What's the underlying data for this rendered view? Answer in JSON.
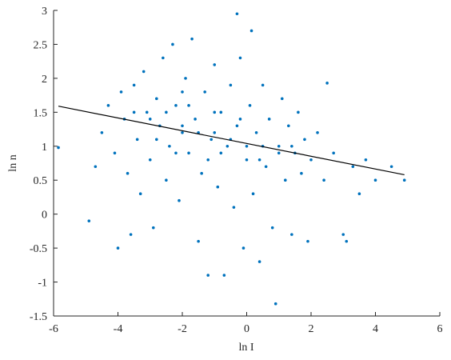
{
  "chart_data": {
    "type": "scatter",
    "xlabel": "ln I",
    "ylabel": "ln n",
    "xlim": [
      -6,
      6
    ],
    "ylim": [
      -1.5,
      3
    ],
    "xticks": [
      -6,
      -4,
      -2,
      0,
      2,
      4,
      6
    ],
    "yticks": [
      -1.5,
      -1,
      -0.5,
      0,
      0.5,
      1,
      1.5,
      2,
      2.5,
      3
    ],
    "series": [
      {
        "color": "#0072bd",
        "x": [
          -5.85,
          -4.9,
          -4.7,
          -4.5,
          -4.3,
          -4.1,
          -4.0,
          -3.9,
          -3.8,
          -3.7,
          -3.6,
          -3.5,
          -3.4,
          -3.3,
          -3.2,
          -3.1,
          -3.0,
          -2.9,
          -2.8,
          -2.7,
          -2.6,
          -2.5,
          -2.4,
          -2.3,
          -2.2,
          -2.1,
          -2.0,
          -1.9,
          -1.8,
          -1.7,
          -1.6,
          -1.5,
          -1.4,
          -1.3,
          -1.2,
          -1.1,
          -1.0,
          -0.9,
          -0.8,
          -0.7,
          -0.6,
          -0.5,
          -0.4,
          -0.3,
          -0.2,
          -0.1,
          0.0,
          0.1,
          0.15,
          0.2,
          0.3,
          0.4,
          0.5,
          0.6,
          0.7,
          0.8,
          0.9,
          1.0,
          1.1,
          1.2,
          1.3,
          1.4,
          1.5,
          1.6,
          1.7,
          1.8,
          1.9,
          2.0,
          2.2,
          2.4,
          2.5,
          2.7,
          3.0,
          3.1,
          3.3,
          3.5,
          3.7,
          4.0,
          4.5,
          4.9,
          -0.3,
          -3,
          -2.5,
          -2,
          -1.5,
          -1,
          -0.5,
          0,
          0.5,
          1,
          -2.8,
          -2.2,
          -1.8,
          -1.2,
          -0.8,
          -0.2,
          0.4,
          1.4,
          -3.5,
          -2.0,
          -1.0
        ],
        "y": [
          0.98,
          -0.1,
          0.7,
          1.2,
          1.6,
          0.9,
          -0.5,
          1.8,
          1.4,
          0.6,
          -0.3,
          1.9,
          1.1,
          0.3,
          2.1,
          1.5,
          0.8,
          -0.2,
          1.7,
          1.3,
          2.3,
          0.5,
          1.0,
          2.5,
          1.6,
          0.2,
          1.2,
          2.0,
          0.9,
          2.58,
          1.4,
          -0.4,
          0.6,
          1.8,
          -0.9,
          1.1,
          2.2,
          0.4,
          1.5,
          -0.9,
          1.0,
          1.9,
          0.1,
          1.3,
          2.3,
          -0.5,
          0.8,
          1.6,
          2.7,
          0.3,
          1.2,
          -0.7,
          1.9,
          0.7,
          1.4,
          -0.2,
          -1.32,
          1.0,
          1.7,
          0.5,
          1.3,
          -0.3,
          0.9,
          1.5,
          0.6,
          1.1,
          -0.4,
          0.8,
          1.2,
          0.5,
          1.93,
          0.9,
          -0.3,
          -0.4,
          0.7,
          0.3,
          0.8,
          0.5,
          0.7,
          0.5,
          2.95,
          1.4,
          1.5,
          1.3,
          1.2,
          1.2,
          1.1,
          1.0,
          1.0,
          0.9,
          1.1,
          0.9,
          1.6,
          0.8,
          0.9,
          1.4,
          0.8,
          1.0,
          1.5,
          1.8,
          1.5
        ]
      }
    ],
    "fit_line": {
      "color": "#000000",
      "x": [
        -5.85,
        4.9
      ],
      "y": [
        1.59,
        0.58
      ]
    }
  }
}
